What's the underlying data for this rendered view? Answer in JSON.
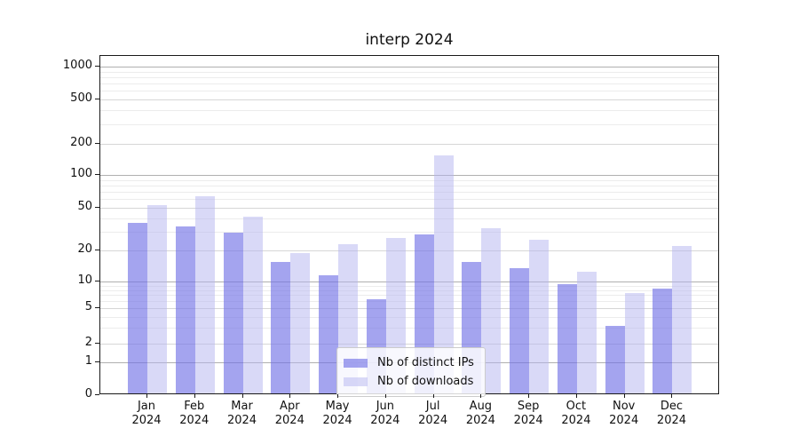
{
  "chart_data": {
    "type": "bar",
    "title": "interp 2024",
    "categories": [
      "Jan",
      "Feb",
      "Mar",
      "Apr",
      "May",
      "Jun",
      "Jul",
      "Aug",
      "Sep",
      "Oct",
      "Nov",
      "Dec"
    ],
    "year": "2024",
    "series": [
      {
        "name": "Nb of distinct IPs",
        "color": "#7373e6",
        "opacity": 0.65,
        "values": [
          35,
          32,
          28,
          15,
          11,
          6,
          27,
          15,
          13,
          9,
          3,
          8
        ]
      },
      {
        "name": "Nb of downloads",
        "color": "#b4b4f0",
        "opacity": 0.5,
        "values": [
          51,
          61,
          40,
          18,
          22,
          25,
          150,
          31,
          24,
          12,
          7,
          21
        ]
      }
    ],
    "y_ticks": [
      0,
      1,
      2,
      5,
      10,
      20,
      50,
      100,
      200,
      500,
      1000
    ],
    "y_scale": "log above 1, linear 0-1",
    "ylim": [
      0,
      1250
    ],
    "xlabel": "",
    "ylabel": "",
    "grid": true,
    "legend_position": "lower center inside plot"
  }
}
